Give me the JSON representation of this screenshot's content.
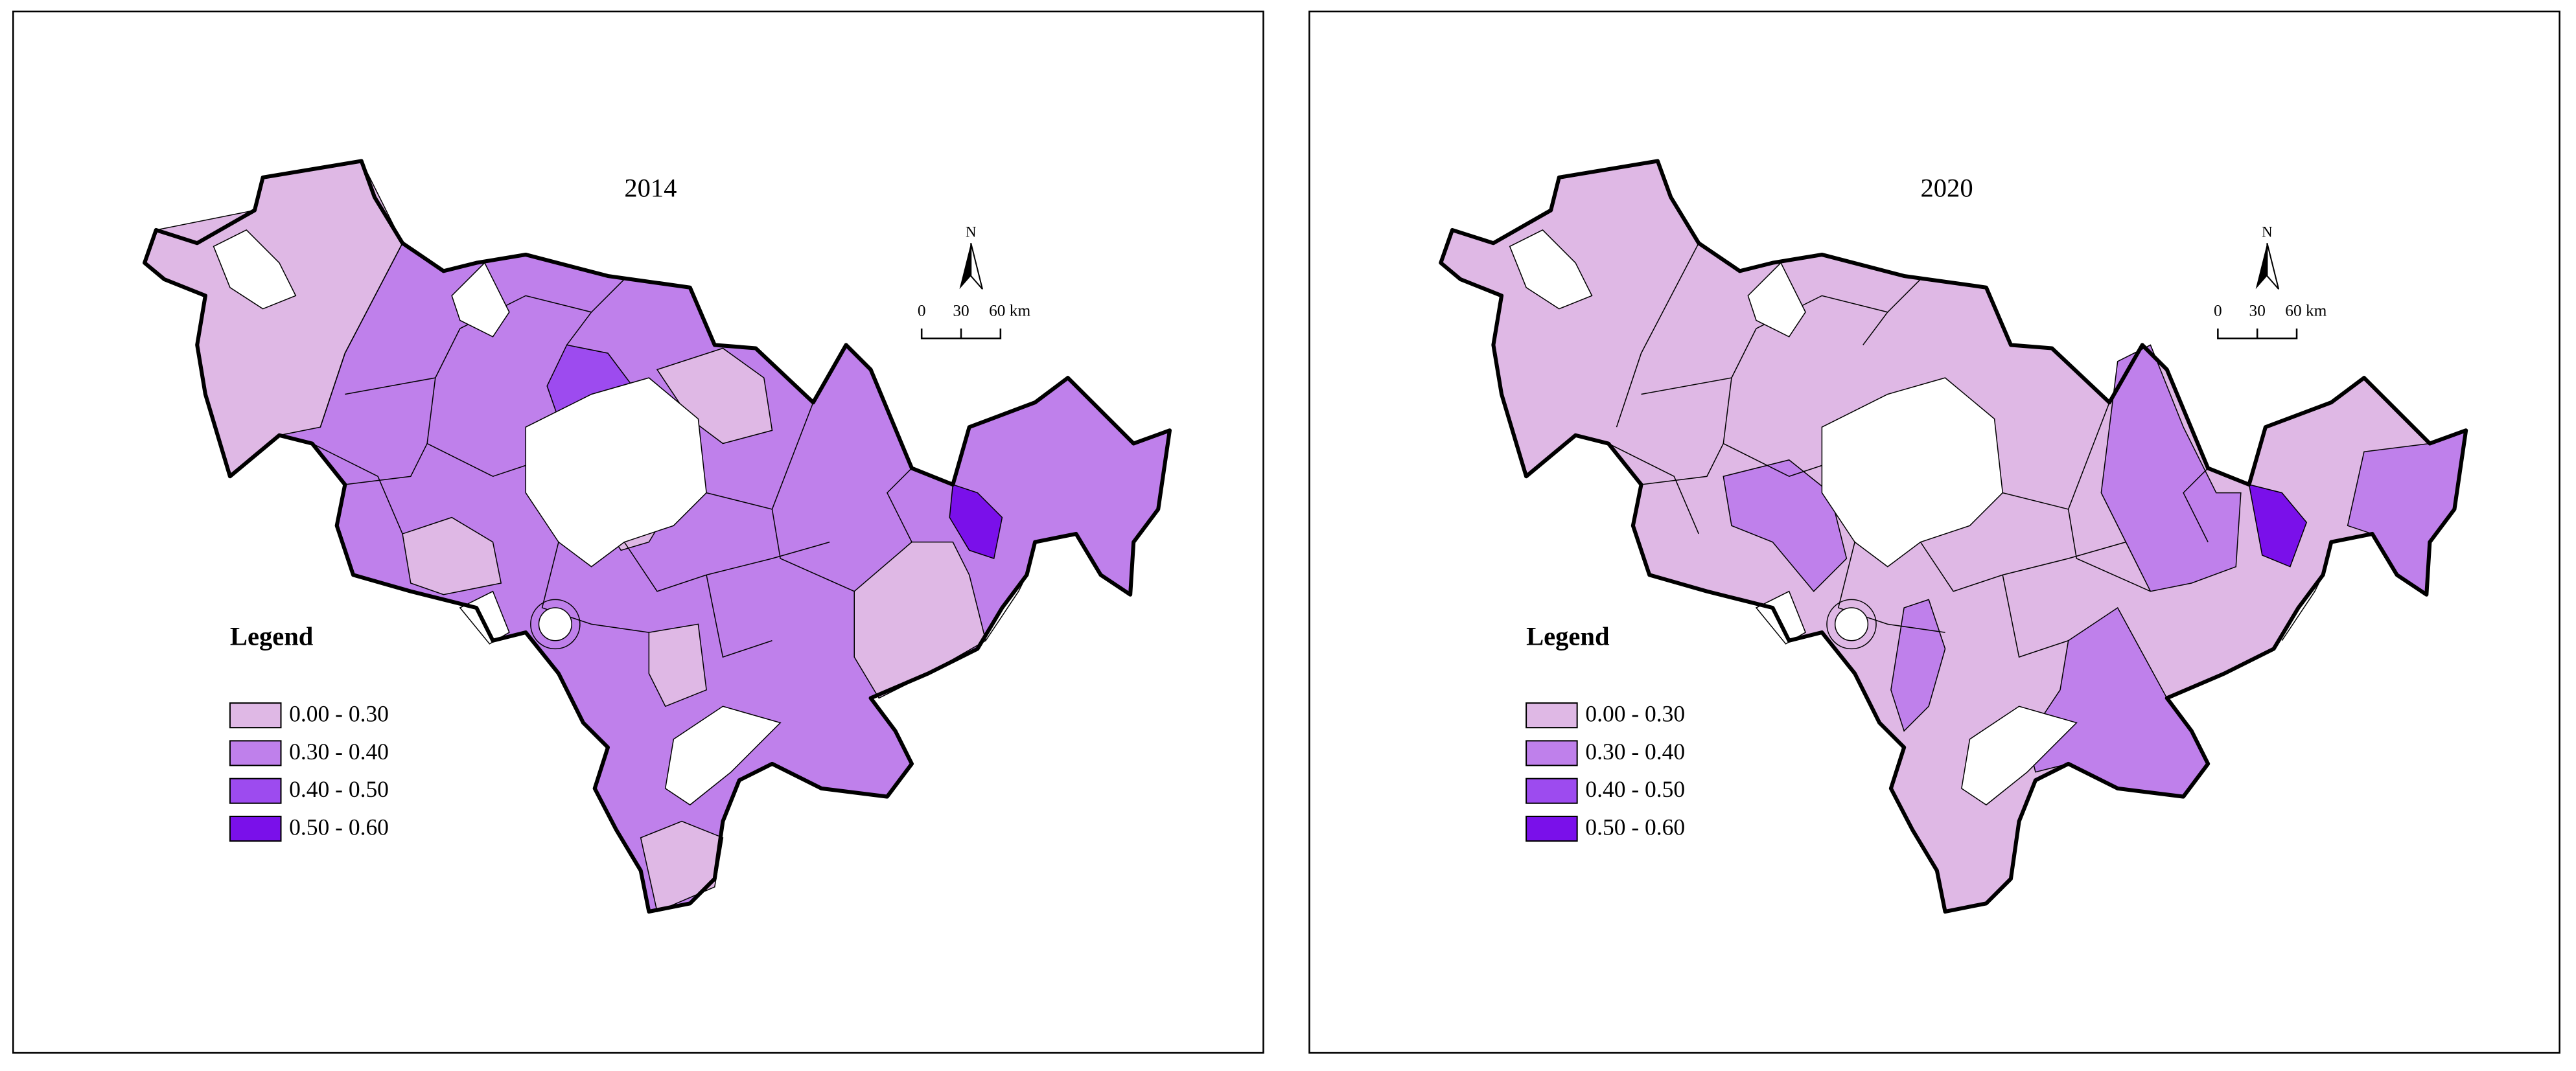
{
  "panels": [
    {
      "title": "2014",
      "north": "N",
      "scale_labels": [
        "0",
        "30",
        "60 km"
      ],
      "legend": {
        "title": "Legend",
        "items": [
          {
            "label": "0.00 - 0.30",
            "color": "#dfb8e5"
          },
          {
            "label": "0.30 - 0.40",
            "color": "#bf80eb"
          },
          {
            "label": "0.40 - 0.50",
            "color": "#9d4bef"
          },
          {
            "label": "0.50 - 0.60",
            "color": "#7a10ea"
          }
        ]
      }
    },
    {
      "title": "2020",
      "north": "N",
      "scale_labels": [
        "0",
        "30",
        "60 km"
      ],
      "legend": {
        "title": "Legend",
        "items": [
          {
            "label": "0.00 - 0.30",
            "color": "#dfb8e5"
          },
          {
            "label": "0.30 - 0.40",
            "color": "#bf80eb"
          },
          {
            "label": "0.40 - 0.50",
            "color": "#9d4bef"
          },
          {
            "label": "0.50 - 0.60",
            "color": "#7a10ea"
          }
        ]
      }
    }
  ]
}
